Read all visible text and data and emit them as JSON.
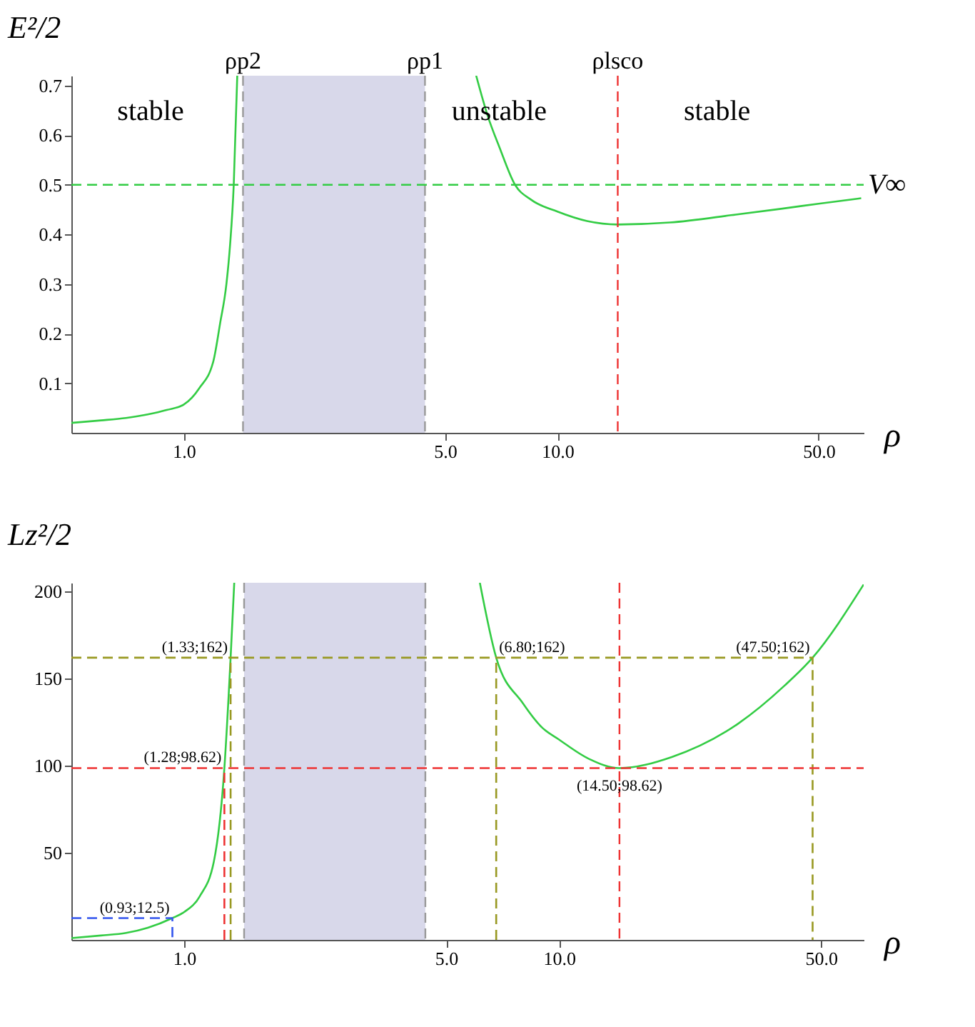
{
  "chart_data": [
    {
      "type": "line",
      "ylabel": "E²/2",
      "xlabel": "ρ",
      "log": "x",
      "grid": false,
      "marker": "none",
      "xlim": [
        0.5,
        66
      ],
      "ylim": [
        0,
        0.72
      ],
      "xticks": [
        {
          "value": 1,
          "label": "1.0"
        },
        {
          "value": 5,
          "label": "5.0"
        },
        {
          "value": 10,
          "label": "10.0"
        },
        {
          "value": 50,
          "label": "50.0"
        }
      ],
      "yticks": [
        0.1,
        0.2,
        0.3,
        0.4,
        0.5,
        0.6,
        0.7
      ],
      "series": [
        {
          "color": "#33cc44",
          "line_style": "solid",
          "x": [
            0.5,
            0.6,
            0.7,
            0.8,
            0.9,
            1.0,
            1.1,
            1.2,
            1.25,
            1.3,
            1.33,
            1.36,
            1.39
          ],
          "values": [
            0.02,
            0.025,
            0.03,
            0.037,
            0.046,
            0.057,
            0.09,
            0.145,
            0.22,
            0.3,
            0.38,
            0.5,
            0.72
          ]
        },
        {
          "color": "#33cc44",
          "line_style": "solid",
          "x": [
            6.06,
            6.5,
            7,
            7.7,
            8.5,
            10,
            12,
            14.5,
            20,
            30,
            40,
            50,
            65
          ],
          "values": [
            0.72,
            0.64,
            0.575,
            0.5,
            0.47,
            0.446,
            0.427,
            0.42,
            0.424,
            0.44,
            0.452,
            0.462,
            0.473
          ]
        }
      ],
      "bands": [
        {
          "axis": "x",
          "from": 1.44,
          "to": 4.42,
          "color": "#d8d8ea"
        }
      ],
      "ref_lines": [
        {
          "axis": "x",
          "value": 1.44,
          "label": "ρp2",
          "color": "#999999",
          "line_style": "dashed"
        },
        {
          "axis": "x",
          "value": 4.42,
          "label": "ρp1",
          "color": "#999999",
          "line_style": "dashed"
        },
        {
          "axis": "x",
          "value": 14.5,
          "label": "ρlsco",
          "color": "#ee3333",
          "line_style": "dashed"
        },
        {
          "axis": "y",
          "value": 0.5,
          "label": "V∞",
          "color": "#33cc44",
          "line_style": "dashed"
        }
      ],
      "annotations": [
        "stable",
        "unstable",
        "stable"
      ]
    },
    {
      "type": "line",
      "ylabel": "Lz²/2",
      "xlabel": "ρ",
      "log": "x",
      "grid": false,
      "marker": "none",
      "xlim": [
        0.5,
        65
      ],
      "ylim": [
        0,
        205
      ],
      "xticks": [
        {
          "value": 1,
          "label": "1.0"
        },
        {
          "value": 5,
          "label": "5.0"
        },
        {
          "value": 10,
          "label": "10.0"
        },
        {
          "value": 50,
          "label": "50.0"
        }
      ],
      "yticks": [
        50,
        100,
        150,
        200
      ],
      "series": [
        {
          "color": "#33cc44",
          "line_style": "solid",
          "x": [
            0.5,
            0.6,
            0.7,
            0.8,
            0.93,
            1.0,
            1.1,
            1.2,
            1.28,
            1.33,
            1.36
          ],
          "values": [
            1,
            2.5,
            4,
            7,
            12.5,
            16,
            25,
            45,
            98.62,
            162,
            205
          ]
        },
        {
          "color": "#33cc44",
          "line_style": "solid",
          "x": [
            6.15,
            6.8,
            8,
            9,
            10,
            12,
            14.5,
            20,
            30,
            40,
            47.5,
            65
          ],
          "values": [
            205,
            162,
            136,
            122,
            115,
            104,
            98.62,
            105,
            124,
            146,
            162,
            204
          ]
        },
        {
          "type": "line",
          "color": "#999922",
          "line_style": "dashed",
          "x": [
            0.5,
            47.5,
            47.5
          ],
          "values": [
            162,
            162,
            0
          ]
        },
        {
          "type": "line",
          "color": "#999922",
          "line_style": "dashed",
          "x": [
            1.33,
            1.33
          ],
          "values": [
            0,
            162
          ]
        },
        {
          "type": "line",
          "color": "#999922",
          "line_style": "dashed",
          "x": [
            6.8,
            6.8
          ],
          "values": [
            0,
            162
          ]
        },
        {
          "type": "line",
          "color": "#ee3333",
          "line_style": "dashed",
          "x": [
            1.28,
            1.28
          ],
          "values": [
            0,
            98.62
          ]
        },
        {
          "type": "line",
          "color": "#3355ee",
          "line_style": "dashed",
          "x": [
            0.5,
            0.93,
            0.93
          ],
          "values": [
            12.5,
            12.5,
            0
          ]
        }
      ],
      "bands": [
        {
          "axis": "x",
          "from": 1.445,
          "to": 4.4,
          "color": "#d8d8ea"
        }
      ],
      "ref_lines": [
        {
          "axis": "x",
          "value": 1.445,
          "color": "#999999",
          "line_style": "dashed"
        },
        {
          "axis": "x",
          "value": 4.4,
          "color": "#999999",
          "line_style": "dashed"
        },
        {
          "axis": "x",
          "value": 14.5,
          "color": "#ee3333",
          "line_style": "dashed"
        },
        {
          "axis": "y",
          "value": 98.62,
          "color": "#ee3333",
          "line_style": "dashed"
        }
      ],
      "annotations": [
        {
          "text": "(1.33;162)",
          "x": 1.33,
          "y": 162
        },
        {
          "text": "(6.80;162)",
          "x": 6.8,
          "y": 162
        },
        {
          "text": "(47.50;162)",
          "x": 47.5,
          "y": 162
        },
        {
          "text": "(1.28;98.62)",
          "x": 1.28,
          "y": 98.62
        },
        {
          "text": "(14.50;98.62)",
          "x": 14.5,
          "y": 98.62
        },
        {
          "text": "(0.93;12.5)",
          "x": 0.93,
          "y": 12.5
        }
      ]
    }
  ]
}
